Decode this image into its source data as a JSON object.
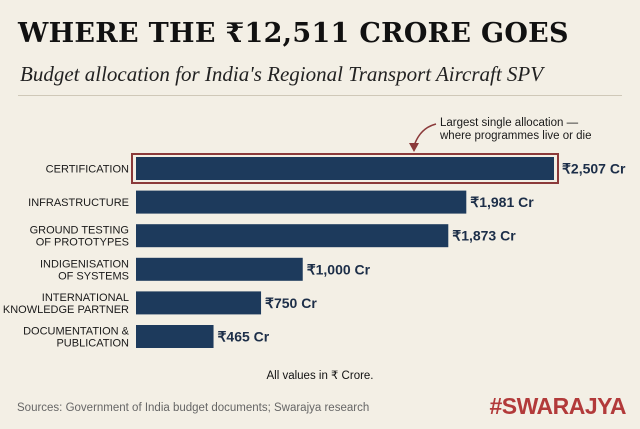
{
  "title": "WHERE THE ₹12,511 CRORE GOES",
  "subtitle": "Budget allocation for India's Regional Transport Aircraft SPV",
  "chart_data": {
    "type": "bar",
    "orientation": "horizontal",
    "categories": [
      [
        "CERTIFICATION"
      ],
      [
        "INFRASTRUCTURE"
      ],
      [
        "GROUND TESTING",
        "OF PROTOTYPES"
      ],
      [
        "INDIGENISATION",
        "OF SYSTEMS"
      ],
      [
        "INTERNATIONAL",
        "KNOWLEDGE PARTNER"
      ],
      [
        "DOCUMENTATION &",
        "PUBLICATION"
      ]
    ],
    "values": [
      2507,
      1981,
      1873,
      1000,
      750,
      465
    ],
    "data_labels": [
      "₹2,507 Cr",
      "₹1,981 Cr",
      "₹1,873 Cr",
      "₹1,000 Cr",
      "₹750 Cr",
      "₹465 Cr"
    ],
    "highlight_index": 0,
    "annotation": [
      "Largest single allocation —",
      "where programmes live or die"
    ],
    "bar_color": "#1d3a5c",
    "highlight_color": "#8b3a3a",
    "grid": false,
    "xlabel": "",
    "ylabel": ""
  },
  "note": "All values in ₹ Crore.",
  "source": "Sources: Government of India budget documents; Swarajya research",
  "brand": "#SWARAJYA"
}
